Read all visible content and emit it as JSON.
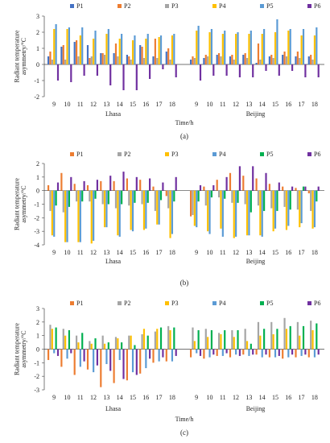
{
  "figure": {
    "panel_labels": [
      "(a)",
      "(b)",
      "(c)"
    ]
  },
  "chart_data": [
    {
      "type": "bar",
      "panel": "(a)",
      "ylabel": "Radiant temperature asymmetry/°C",
      "xlabel": "Time/h",
      "groups": [
        "Lhasa",
        "Beijing"
      ],
      "categories": [
        "9",
        "10",
        "11",
        "12",
        "13",
        "14",
        "15",
        "16",
        "17",
        "18",
        "9",
        "10",
        "11",
        "12",
        "13",
        "14",
        "15",
        "16",
        "17",
        "18"
      ],
      "ylim": [
        -2,
        3
      ],
      "yticks": [
        -2,
        -1,
        0,
        1,
        2,
        3
      ],
      "legend_position": "top",
      "series": [
        {
          "name": "P1",
          "color": "#4472C4",
          "values": [
            0.5,
            1.1,
            1.4,
            1.2,
            0.7,
            0.7,
            0.6,
            1.2,
            0.5,
            0.8,
            0.3,
            0.4,
            0.6,
            0.5,
            0.6,
            0.1,
            0.5,
            0.6,
            0.5,
            0.5
          ]
        },
        {
          "name": "P2",
          "color": "#ED7D31",
          "values": [
            0.8,
            1.2,
            1.5,
            0.4,
            0.7,
            1.3,
            0.5,
            1.1,
            1.6,
            1.0,
            0.5,
            0.6,
            0.7,
            0.6,
            0.7,
            1.3,
            0.6,
            0.8,
            0.8,
            0.6
          ]
        },
        {
          "name": "P3",
          "color": "#A5A5A5",
          "values": [
            0.3,
            0.3,
            0.5,
            0.5,
            0.6,
            0.5,
            0.3,
            0.4,
            0.4,
            0.3,
            0.4,
            0.5,
            0.5,
            0.3,
            0.4,
            0.3,
            0.4,
            0.5,
            0.4,
            0.3
          ]
        },
        {
          "name": "P4",
          "color": "#FFC000",
          "values": [
            2.2,
            2.2,
            1.8,
            1.6,
            1.9,
            1.6,
            1.5,
            1.6,
            1.7,
            1.8,
            2.1,
            2.0,
            1.9,
            1.9,
            1.9,
            1.9,
            2.0,
            2.1,
            1.8,
            1.8
          ]
        },
        {
          "name": "P5",
          "color": "#5B9BD5",
          "values": [
            2.5,
            2.3,
            2.3,
            2.1,
            2.2,
            1.9,
            1.8,
            1.9,
            1.8,
            1.9,
            2.4,
            2.2,
            2.1,
            2.0,
            2.1,
            2.2,
            2.8,
            2.2,
            2.2,
            2.3
          ]
        },
        {
          "name": "P6",
          "color": "#7030A0",
          "values": [
            -1.0,
            -1.1,
            -0.7,
            -0.7,
            -1.3,
            -1.6,
            -1.6,
            -0.9,
            -0.3,
            -0.8,
            -1.0,
            -0.7,
            -0.7,
            -0.8,
            -0.8,
            -0.4,
            -0.7,
            -0.4,
            -0.8,
            -0.8
          ]
        }
      ]
    },
    {
      "type": "bar",
      "panel": "(b)",
      "ylabel": "Radiant temperature asymmetry/°C",
      "xlabel": "",
      "groups": [
        "Lhasa",
        "Beijing"
      ],
      "categories": [
        "9",
        "10",
        "11",
        "12",
        "13",
        "14",
        "15",
        "16",
        "17",
        "18",
        "9",
        "10",
        "11",
        "12",
        "13",
        "14",
        "15",
        "16",
        "17",
        "18"
      ],
      "ylim": [
        -4,
        2
      ],
      "yticks": [
        -4,
        -3,
        -2,
        -1,
        0,
        1,
        2
      ],
      "legend_position": "top",
      "series": [
        {
          "name": "P1",
          "color": "#ED7D31",
          "values": [
            0.4,
            1.3,
            0.5,
            0.4,
            0.7,
            0.7,
            0.9,
            0.8,
            0.3,
            -0.4,
            -1.9,
            0.3,
            0.8,
            1.3,
            1.1,
            0.9,
            0.5,
            0.3,
            0.2,
            -0.2
          ]
        },
        {
          "name": "P2",
          "color": "#A5A5A5",
          "values": [
            -1.5,
            -1.6,
            -0.8,
            -0.8,
            -1.0,
            -1.3,
            -1.1,
            -1.0,
            -1.5,
            -1.3,
            -1.8,
            -1.1,
            -0.5,
            -0.9,
            -1.0,
            -1.1,
            -1.3,
            -1.2,
            -1.4,
            -1.5
          ]
        },
        {
          "name": "P3",
          "color": "#FFC000",
          "values": [
            -3.3,
            -3.8,
            -3.8,
            -3.9,
            -2.7,
            -3.3,
            -2.9,
            -2.9,
            -2.5,
            -3.5,
            -2.6,
            -3.0,
            -2.8,
            -3.5,
            -3.3,
            -3.3,
            -3.0,
            -2.9,
            -2.7,
            -2.8
          ]
        },
        {
          "name": "P4",
          "color": "#5B9BD5",
          "values": [
            -3.4,
            -3.8,
            -3.8,
            -3.7,
            -2.7,
            -3.4,
            -3.0,
            -2.8,
            -2.5,
            -3.2,
            -2.7,
            -3.2,
            -3.4,
            -3.4,
            -3.3,
            -3.4,
            -2.8,
            -2.6,
            -2.4,
            -2.7
          ]
        },
        {
          "name": "P5",
          "color": "#00B050",
          "values": [
            -1.1,
            -1.2,
            -0.8,
            -0.6,
            -1.0,
            -1.0,
            -0.9,
            -0.9,
            -0.7,
            -0.8,
            -0.8,
            -0.5,
            -0.6,
            -0.9,
            -1.6,
            -1.5,
            -1.5,
            -1.4,
            0.3,
            -0.8
          ]
        },
        {
          "name": "P6",
          "color": "#7030A0",
          "values": [
            0.6,
            1.0,
            0.7,
            0.8,
            1.1,
            1.4,
            1.0,
            0.9,
            0.6,
            1.0,
            0.4,
            0.4,
            1.0,
            1.8,
            1.8,
            1.3,
            0.6,
            0.3,
            0.3,
            0.3
          ]
        }
      ]
    },
    {
      "type": "bar",
      "panel": "(c)",
      "ylabel": "Radiant temperature asymmetry/°C",
      "xlabel": "Time/h",
      "groups": [
        "Lhasa",
        "Beijing"
      ],
      "categories": [
        "9",
        "10",
        "11",
        "12",
        "13",
        "14",
        "15",
        "16",
        "17",
        "18",
        "9",
        "10",
        "11",
        "12",
        "13",
        "14",
        "15",
        "16",
        "17",
        "18"
      ],
      "ylim": [
        -3,
        3
      ],
      "yticks": [
        -3,
        -2,
        -1,
        0,
        1,
        2,
        3
      ],
      "legend_position": "top",
      "series": [
        {
          "name": "P1",
          "color": "#ED7D31",
          "values": [
            -0.8,
            -1.3,
            -1.9,
            -1.5,
            -2.8,
            -2.5,
            -2.3,
            -1.8,
            -1.0,
            -0.9,
            -0.6,
            -0.7,
            -0.5,
            -0.6,
            -0.4,
            -0.4,
            -0.6,
            -0.7,
            -0.6,
            -0.6
          ]
        },
        {
          "name": "P2",
          "color": "#A5A5A5",
          "values": [
            1.8,
            1.5,
            1.0,
            0.6,
            1.0,
            0.9,
            1.0,
            1.1,
            1.3,
            1.7,
            1.6,
            1.5,
            1.2,
            1.4,
            1.5,
            2.0,
            2.0,
            2.3,
            2.0,
            2.1
          ]
        },
        {
          "name": "P3",
          "color": "#FFC000",
          "values": [
            1.5,
            1.0,
            0.5,
            0.4,
            0.4,
            0.8,
            1.0,
            1.5,
            1.5,
            1.4,
            0.6,
            0.9,
            1.1,
            0.9,
            0.6,
            1.0,
            1.1,
            1.5,
            1.0,
            1.4
          ]
        },
        {
          "name": "P4",
          "color": "#5B9BD5",
          "values": [
            -0.3,
            -0.7,
            -1.3,
            -1.7,
            -1.1,
            -0.8,
            -1.7,
            -1.4,
            -0.9,
            -0.9,
            -0.3,
            -0.6,
            -0.5,
            -0.4,
            -0.5,
            -0.6,
            -0.6,
            -0.6,
            -0.5,
            -0.6
          ]
        },
        {
          "name": "P5",
          "color": "#00B050",
          "values": [
            1.6,
            1.4,
            1.2,
            0.8,
            0.5,
            0.5,
            0.3,
            1.0,
            1.6,
            1.6,
            1.4,
            1.4,
            1.4,
            1.4,
            0.4,
            1.5,
            1.5,
            1.7,
            1.7,
            1.9
          ]
        },
        {
          "name": "P6",
          "color": "#7030A0",
          "values": [
            -0.5,
            -0.3,
            -0.9,
            -1.2,
            -1.6,
            -2.2,
            -1.9,
            -0.7,
            -0.6,
            -0.5,
            -0.5,
            -0.4,
            -0.3,
            -0.5,
            -0.4,
            -0.4,
            -0.5,
            -0.4,
            -0.4,
            -0.4
          ]
        }
      ]
    }
  ]
}
